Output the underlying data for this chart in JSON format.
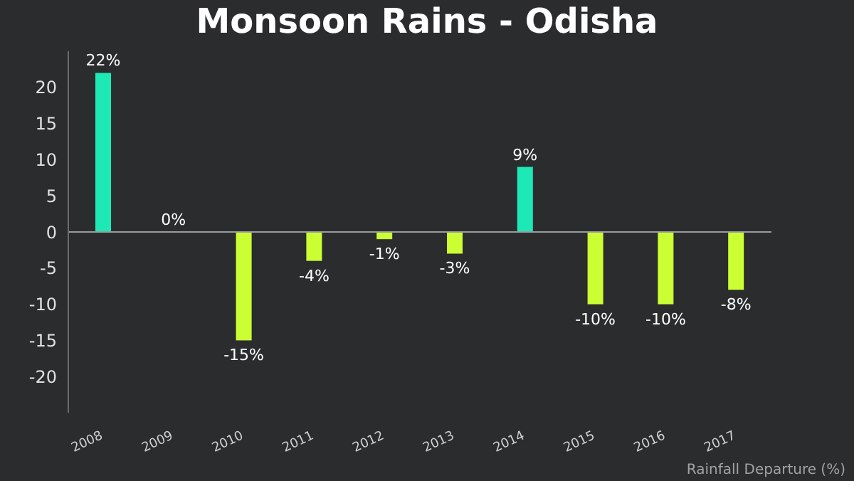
{
  "chart_data": {
    "type": "bar",
    "title": "Monsoon Rains - Odisha",
    "xlabel": "Rainfall Departure (%)",
    "categories": [
      "2008",
      "2009",
      "2010",
      "2011",
      "2012",
      "2013",
      "2014",
      "2015",
      "2016",
      "2017"
    ],
    "values": [
      22,
      0,
      -15,
      -4,
      -1,
      -3,
      9,
      -10,
      -10,
      -8
    ],
    "colors": [
      "#1de9b6",
      "#1de9b6",
      "#ccff33",
      "#ccff33",
      "#ccff33",
      "#ccff33",
      "#1de9b6",
      "#ccff33",
      "#ccff33",
      "#ccff33"
    ],
    "value_labels": [
      "22%",
      "0%",
      "-15%",
      "-4%",
      "-1%",
      "-3%",
      "9%",
      "-10%",
      "-10%",
      "-8%"
    ],
    "ylim": [
      -25,
      25
    ],
    "yticks": [
      -20,
      -15,
      -10,
      -5,
      0,
      5,
      10,
      15,
      20
    ],
    "ref_lines": [
      {
        "axis": "y",
        "value": 0,
        "color": "#9a9c9e"
      }
    ],
    "grid": false
  }
}
